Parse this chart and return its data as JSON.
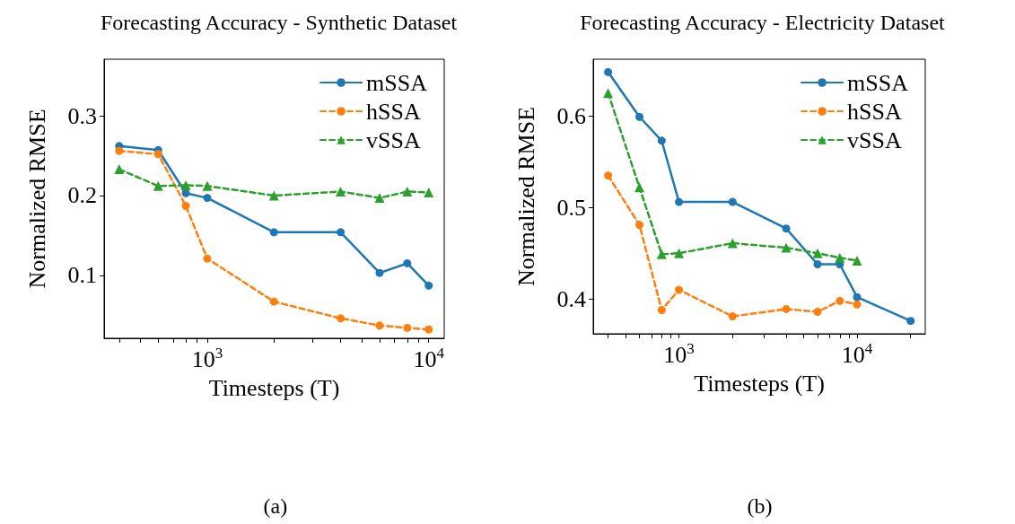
{
  "chart_data": [
    {
      "type": "line",
      "title": "Forecasting Accuracy - Synthetic Dataset",
      "xlabel": "Timesteps (T)",
      "ylabel": "Normalized RMSE",
      "annotations": [
        "(a)"
      ],
      "x": [
        400,
        600,
        800,
        1000,
        2000,
        4000,
        6000,
        8000,
        10000
      ],
      "series": [
        {
          "name": "mSSA",
          "color": "#1f77b4",
          "marker": "circle",
          "line_style": "solid",
          "values": [
            0.262,
            0.257,
            0.203,
            0.197,
            0.154,
            0.154,
            0.103,
            0.115,
            0.087
          ]
        },
        {
          "name": "hSSA",
          "color": "#ff7f0e",
          "marker": "circle",
          "line_style": "dashed",
          "values": [
            0.256,
            0.252,
            0.187,
            0.121,
            0.067,
            0.046,
            0.037,
            0.034,
            0.032
          ]
        },
        {
          "name": "vSSA",
          "color": "#2ca02c",
          "marker": "triangle",
          "line_style": "dashed",
          "values": [
            0.233,
            0.212,
            0.213,
            0.212,
            0.2,
            0.205,
            0.197,
            0.205,
            0.204
          ]
        }
      ],
      "log": "x",
      "xlim": [
        342,
        11750
      ],
      "ylim": [
        0.021,
        0.371
      ],
      "xticks": [
        {
          "value": 400,
          "label": null
        },
        {
          "value": 500,
          "label": null
        },
        {
          "value": 600,
          "label": null
        },
        {
          "value": 700,
          "label": null
        },
        {
          "value": 800,
          "label": null
        },
        {
          "value": 900,
          "label": null
        },
        {
          "value": 1000,
          "label": "10$^{3}$"
        },
        {
          "value": 2000,
          "label": null
        },
        {
          "value": 3000,
          "label": null
        },
        {
          "value": 4000,
          "label": null
        },
        {
          "value": 5000,
          "label": null
        },
        {
          "value": 6000,
          "label": null
        },
        {
          "value": 7000,
          "label": null
        },
        {
          "value": 8000,
          "label": null
        },
        {
          "value": 9000,
          "label": null
        },
        {
          "value": 10000,
          "label": "10$^{4}$"
        }
      ],
      "yticks": [
        0.1,
        0.2,
        0.3
      ],
      "grid": false,
      "legend": "top right"
    },
    {
      "type": "line",
      "title": "Forecasting Accuracy - Electricity Dataset",
      "xlabel": "Timesteps (T)",
      "ylabel": "Normalized RMSE",
      "annotations": [
        "(b)"
      ],
      "series": [
        {
          "name": "mSSA",
          "color": "#1f77b4",
          "marker": "circle",
          "line_style": "solid",
          "x": [
            400,
            600,
            800,
            1000,
            2000,
            4000,
            6000,
            8000,
            10000,
            20000
          ],
          "values": [
            0.648,
            0.599,
            0.573,
            0.506,
            0.506,
            0.477,
            0.438,
            0.438,
            0.402,
            0.376
          ]
        },
        {
          "name": "hSSA",
          "color": "#ff7f0e",
          "marker": "circle",
          "line_style": "dashed",
          "x": [
            400,
            600,
            800,
            1000,
            2000,
            4000,
            6000,
            8000,
            10000
          ],
          "values": [
            0.535,
            0.481,
            0.388,
            0.41,
            0.381,
            0.389,
            0.386,
            0.398,
            0.394
          ]
        },
        {
          "name": "vSSA",
          "color": "#2ca02c",
          "marker": "triangle",
          "line_style": "dashed",
          "x": [
            400,
            600,
            800,
            1000,
            2000,
            4000,
            6000,
            8000,
            10000
          ],
          "values": [
            0.625,
            0.522,
            0.449,
            0.45,
            0.461,
            0.456,
            0.45,
            0.445,
            0.442
          ]
        }
      ],
      "log": "x",
      "xlim": [
        330,
        24150
      ],
      "ylim": [
        0.362,
        0.662
      ],
      "xticks": [
        {
          "value": 400,
          "label": null
        },
        {
          "value": 500,
          "label": null
        },
        {
          "value": 600,
          "label": null
        },
        {
          "value": 700,
          "label": null
        },
        {
          "value": 800,
          "label": null
        },
        {
          "value": 900,
          "label": null
        },
        {
          "value": 1000,
          "label": "10$^{3}$"
        },
        {
          "value": 2000,
          "label": null
        },
        {
          "value": 3000,
          "label": null
        },
        {
          "value": 4000,
          "label": null
        },
        {
          "value": 5000,
          "label": null
        },
        {
          "value": 6000,
          "label": null
        },
        {
          "value": 7000,
          "label": null
        },
        {
          "value": 8000,
          "label": null
        },
        {
          "value": 9000,
          "label": null
        },
        {
          "value": 10000,
          "label": "10$^{4}$"
        },
        {
          "value": 20000,
          "label": null
        }
      ],
      "yticks": [
        0.4,
        0.5,
        0.6
      ],
      "grid": false,
      "legend": "top right"
    }
  ]
}
